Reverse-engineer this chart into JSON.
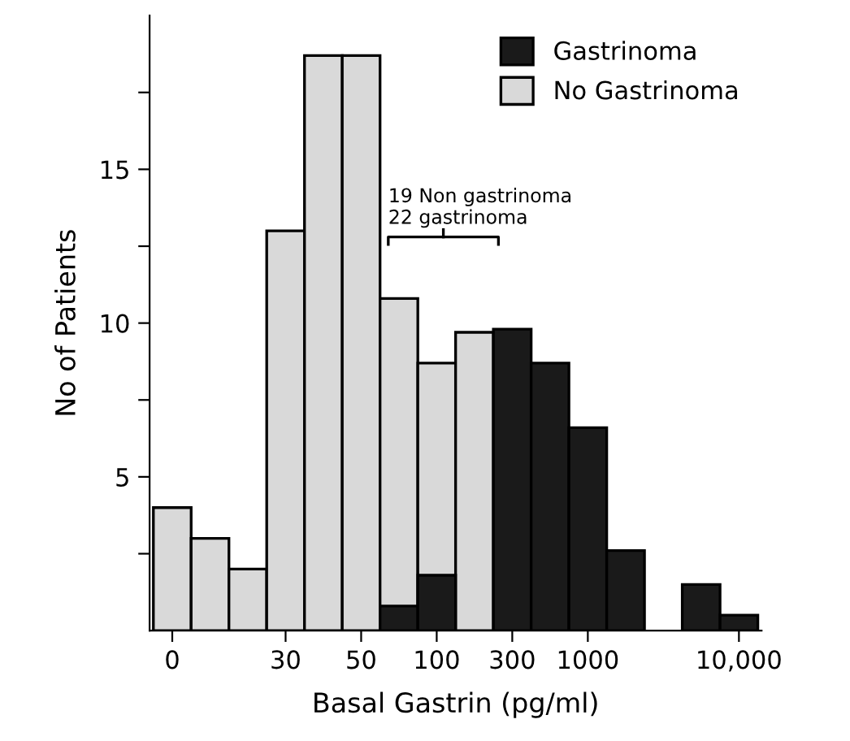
{
  "chart_data": {
    "type": "bar",
    "xlabel": "Basal Gastrin (pg/ml)",
    "ylabel": "No of Patients",
    "categories": [
      "0",
      null,
      null,
      "30",
      null,
      "50",
      null,
      "100",
      null,
      "300",
      null,
      "1000",
      null,
      null,
      null,
      "10,000"
    ],
    "series": [
      {
        "name": "Gastrinoma",
        "color": "#1a1a1a",
        "values": [
          null,
          null,
          null,
          null,
          null,
          null,
          0.8,
          1.8,
          null,
          9.8,
          8.7,
          6.6,
          2.6,
          null,
          1.5,
          0.5
        ]
      },
      {
        "name": "No Gastrinoma",
        "color": "#d9d9d9",
        "values": [
          4,
          3,
          2,
          13,
          18.7,
          18.7,
          10.8,
          8.7,
          9.7,
          null,
          null,
          null,
          null,
          null,
          null,
          null
        ]
      }
    ],
    "ylim": [
      0,
      20
    ],
    "yticks": [
      {
        "value": 2.5,
        "label": null
      },
      5,
      {
        "value": 7.5,
        "label": null
      },
      10,
      {
        "value": 12.5,
        "label": null
      },
      15,
      {
        "value": 17.5,
        "label": null
      }
    ],
    "annotations": [
      "19 Non gastrinoma\n22 gastrinoma"
    ],
    "legend": "top right",
    "grid": false
  }
}
